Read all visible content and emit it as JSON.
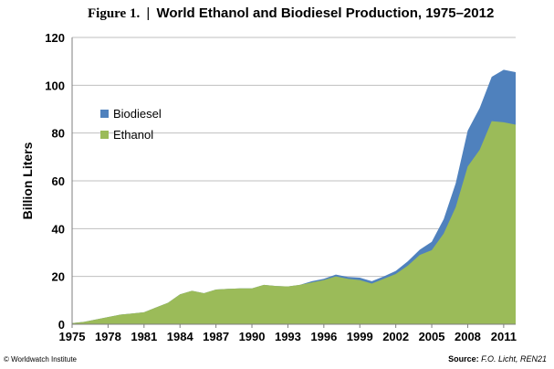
{
  "page": {
    "title_figure": "Figure 1.",
    "title_separator": "|",
    "title_text": "World Ethanol and Biodiesel Production, 1975–2012",
    "credit": "© Worldwatch Institute",
    "source_label": "Source:",
    "source_text": "F.O. Licht, REN21"
  },
  "chart_data": {
    "type": "area",
    "stacked": true,
    "title": "World Ethanol and Biodiesel Production, 1975–2012",
    "xlabel": "",
    "ylabel": "Billion Liters",
    "xlim": [
      1975,
      2012
    ],
    "ylim": [
      0,
      120
    ],
    "yticks": [
      0,
      20,
      40,
      60,
      80,
      100,
      120
    ],
    "xtick_labels": [
      "1975",
      "1978",
      "1981",
      "1984",
      "1987",
      "1990",
      "1993",
      "1996",
      "1999",
      "2002",
      "2005",
      "2008",
      "2011"
    ],
    "legend_position": "upper-left",
    "grid": "horizontal",
    "x": [
      1975,
      1976,
      1977,
      1978,
      1979,
      1980,
      1981,
      1982,
      1983,
      1984,
      1985,
      1986,
      1987,
      1988,
      1989,
      1990,
      1991,
      1992,
      1993,
      1994,
      1995,
      1996,
      1997,
      1998,
      1999,
      2000,
      2001,
      2002,
      2003,
      2004,
      2005,
      2006,
      2007,
      2008,
      2009,
      2010,
      2011,
      2012
    ],
    "series": [
      {
        "name": "Ethanol",
        "color": "#9bbb59",
        "values": [
          0.5,
          1,
          2,
          3,
          4,
          4.5,
          5,
          7,
          9,
          12.5,
          14,
          13,
          14.5,
          14.8,
          15,
          15,
          16.5,
          16,
          15.8,
          16.5,
          17.5,
          18.5,
          20,
          19,
          18.5,
          17,
          19,
          21,
          24.5,
          29,
          31,
          38,
          49,
          66,
          73,
          85,
          84.5,
          83.5
        ]
      },
      {
        "name": "Biodiesel",
        "color": "#4f81bd",
        "values": [
          0,
          0,
          0,
          0,
          0,
          0,
          0,
          0,
          0,
          0,
          0,
          0,
          0,
          0,
          0,
          0,
          0,
          0,
          0,
          0,
          0.5,
          0.5,
          0.8,
          0.8,
          1,
          1,
          1,
          1.3,
          1.8,
          2.2,
          3.5,
          6,
          10,
          15,
          17.5,
          18.5,
          22,
          22
        ]
      }
    ]
  }
}
